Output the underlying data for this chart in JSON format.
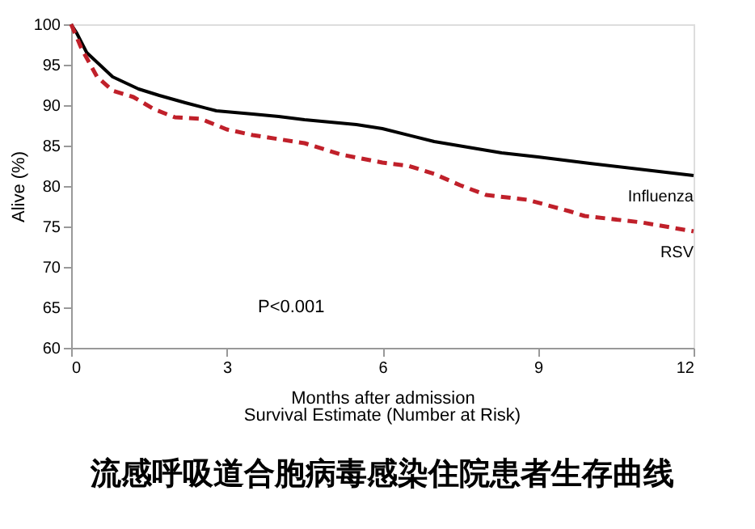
{
  "chart_data": {
    "type": "line",
    "title": "流感呼吸道合胞病毒感染住院患者生存曲线",
    "xlabel": "Months after admission",
    "ylabel": "Alive (%)",
    "annotations": [
      "P<0.001",
      "Survival Estimate (Number at Risk)"
    ],
    "xlim": [
      0,
      12
    ],
    "xticks": [
      0,
      3,
      6,
      9,
      12
    ],
    "ylim": [
      60,
      100
    ],
    "yticks": [
      60,
      65,
      70,
      75,
      80,
      85,
      90,
      95,
      100
    ],
    "grid": false,
    "marker": "none",
    "series": [
      {
        "name": "Influenza",
        "color": "#000000",
        "line_style": "solid",
        "x": [
          0,
          0.1,
          0.3,
          0.8,
          1.3,
          1.7,
          2.2,
          2.8,
          3.5,
          4,
          4.5,
          5,
          5.5,
          6,
          7,
          8.3,
          9,
          10,
          11.2,
          12
        ],
        "values": [
          100,
          99,
          96.5,
          93.5,
          92,
          91.2,
          90.3,
          89.3,
          88.9,
          88.6,
          88.2,
          87.9,
          87.6,
          87.1,
          85.5,
          84.1,
          83.6,
          82.8,
          81.9,
          81.3
        ]
      },
      {
        "name": "RSV",
        "color": "#c0202a",
        "line_style": "dashed",
        "x": [
          0,
          0.2,
          0.5,
          0.8,
          1.2,
          1.6,
          2,
          2.5,
          3,
          3.5,
          4,
          4.5,
          5.2,
          6,
          6.5,
          7,
          7.5,
          8,
          8.8,
          9.6,
          9.9,
          11,
          12
        ],
        "values": [
          100,
          97,
          93.5,
          91.8,
          91,
          89.5,
          88.5,
          88.3,
          87,
          86.3,
          85.8,
          85.3,
          83.9,
          82.9,
          82.5,
          81.5,
          80.1,
          78.9,
          78.3,
          76.9,
          76.3,
          75.5,
          74.4
        ]
      }
    ]
  }
}
